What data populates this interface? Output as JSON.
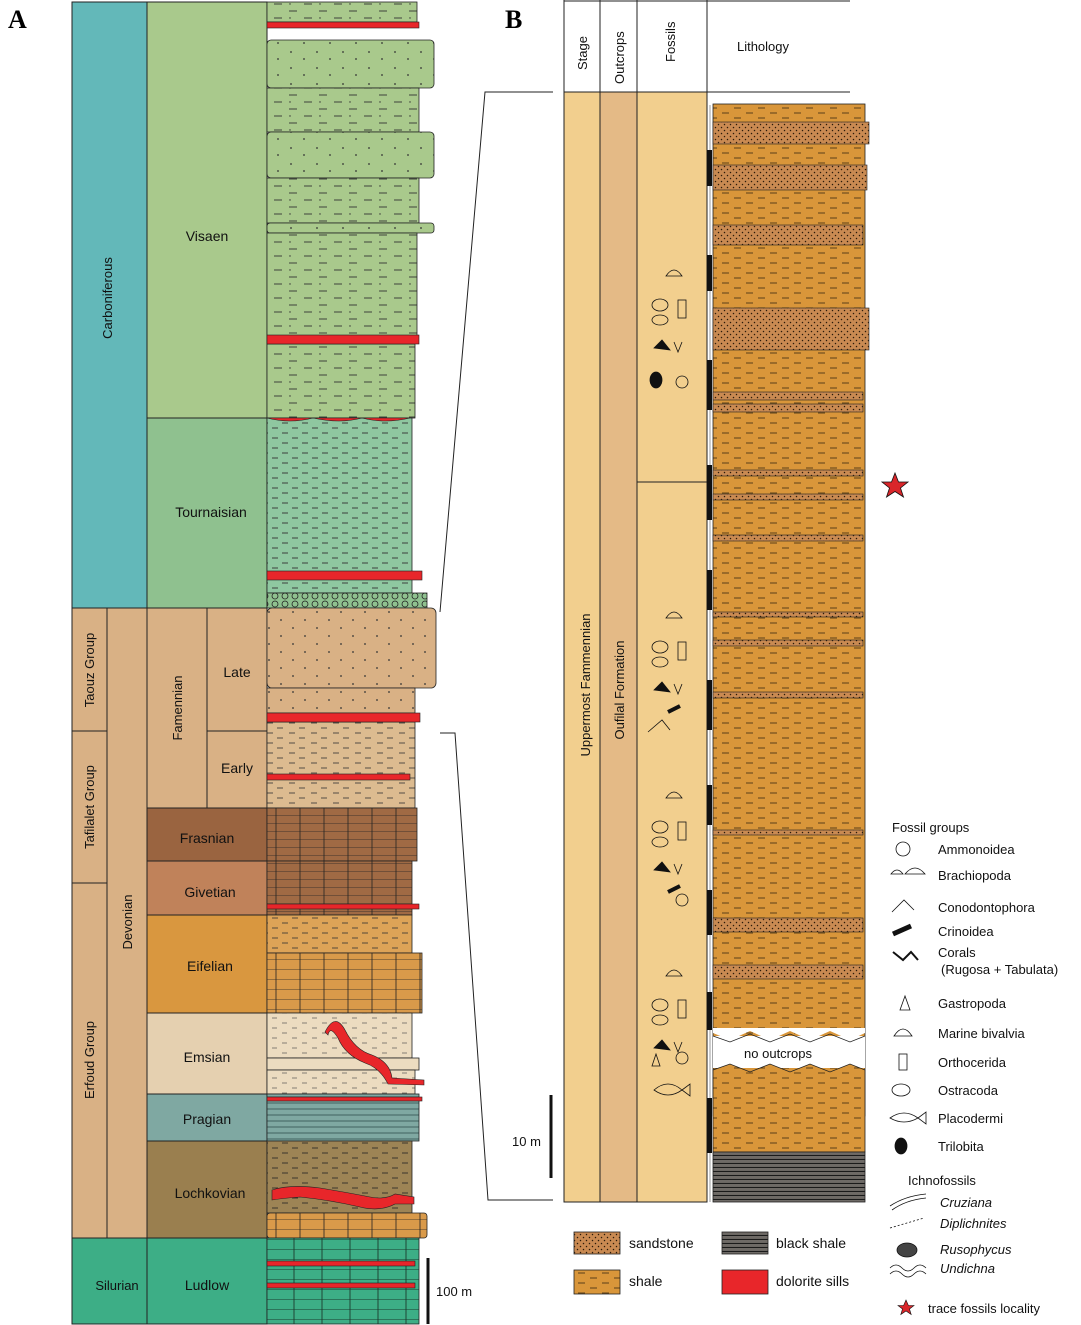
{
  "panels": {
    "a": "A",
    "b": "B"
  },
  "panel_a": {
    "systems": {
      "carboniferous": "Carboniferous",
      "devonian": "Devonian",
      "silurian": "Silurian"
    },
    "groups": {
      "taouz": "Taouz Group",
      "tafilalet": "Tafilalet  Group",
      "erfoud": "Erfoud Group"
    },
    "stages": {
      "visaen": "Visaen",
      "tournaisian": "Tournaisian",
      "famennian": "Famennian",
      "late": "Late",
      "early": "Early",
      "frasnian": "Frasnian",
      "givetian": "Givetian",
      "eifelian": "Eifelian",
      "emsian": "Emsian",
      "pragian": "Pragian",
      "lochkovian": "Lochkovian",
      "ludlow": "Ludlow"
    },
    "scale": "100 m"
  },
  "panel_b": {
    "headers": {
      "stage": "Stage",
      "outcrops": "Outcrops",
      "fossils": "Fossils",
      "lithology": "Lithology"
    },
    "stage_name": "Uppermost  Fammennian",
    "formation": "Oufilal Formation",
    "no_outcrops": "no outcrops",
    "scale": "10 m"
  },
  "legend": {
    "fossil_groups_title": "Fossil groups",
    "fossil_groups": [
      "Ammonoidea",
      "Brachiopoda",
      "Conodontophora",
      "Crinoidea",
      "Corals",
      "(Rugosa + Tabulata)",
      "Gastropoda",
      "Marine bivalvia",
      "Orthocerida",
      "Ostracoda",
      "Placodermi",
      "Trilobita"
    ],
    "ichnofossils_title": "Ichnofossils",
    "ichnofossils": [
      "Cruziana",
      "Diplichnites",
      "Rusophycus",
      "Undichna"
    ],
    "lithology": {
      "sandstone": "sandstone",
      "shale": "shale",
      "black_shale": "black shale",
      "dolorite_sills": "dolorite sills"
    },
    "locality": "trace fossils locality"
  },
  "colors": {
    "carboniferous": "#63b8b9",
    "devonian_tan": "#d9b185",
    "visaen": "#a9c98c",
    "tournaisian": "#8fc18f",
    "frasnian": "#9a6440",
    "givetian": "#c0825a",
    "eifelian": "#d9973f",
    "emsian": "#e5d0b0",
    "pragian": "#7fa8a2",
    "lochkovian": "#9a7f4f",
    "silurian": "#3dae86",
    "panel_b_column": "#f2cf8e",
    "outcrop_column": "#e4ba86",
    "shale": "#d9963a",
    "sill": "#e8262a",
    "star": "#d9262a"
  }
}
